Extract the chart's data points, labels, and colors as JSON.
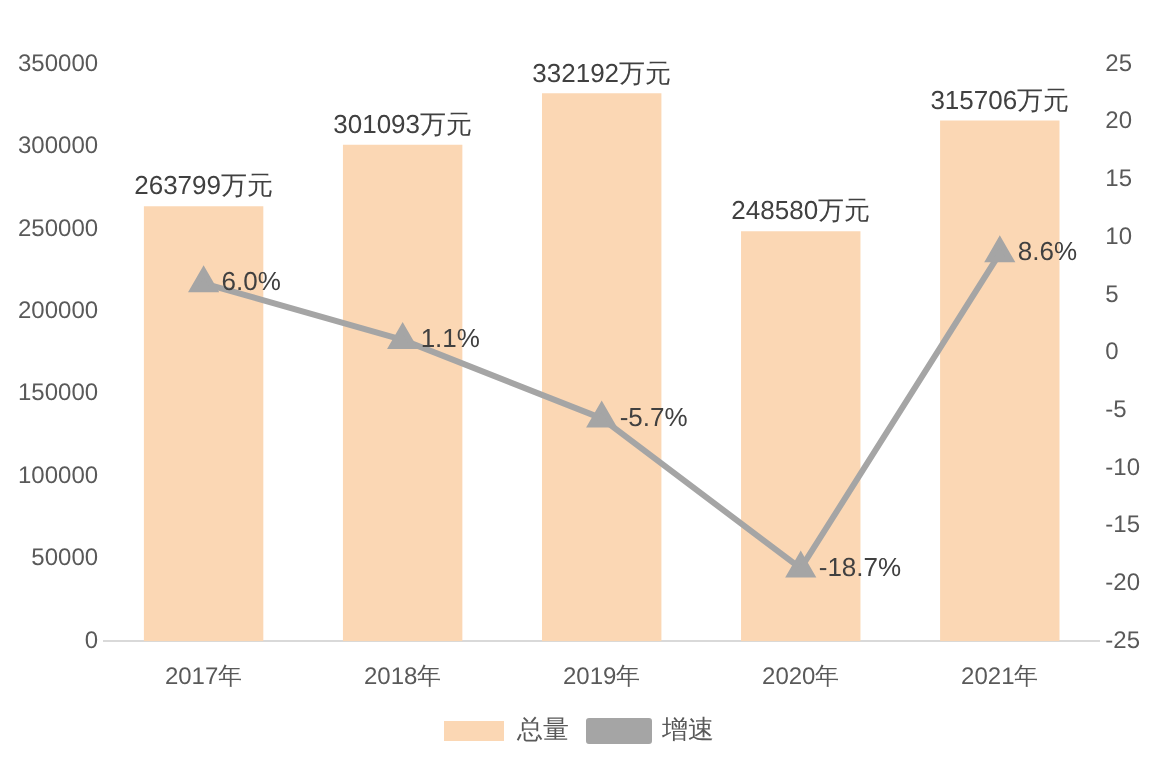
{
  "chart_data": {
    "type": "bar",
    "categories": [
      "2017年",
      "2018年",
      "2019年",
      "2020年",
      "2021年"
    ],
    "series": [
      {
        "name": "总量",
        "color": "#fbd7b4",
        "values": [
          263799,
          301093,
          332192,
          248580,
          315706
        ],
        "value_labels": [
          "263799万元",
          "301093万元",
          "332192万元",
          "248580万元",
          "315706万元"
        ]
      },
      {
        "name": "增速",
        "type": "line",
        "axis": "y2",
        "color": "#a5a5a5",
        "values": [
          6.0,
          1.1,
          -5.7,
          -18.7,
          8.6
        ],
        "value_labels": [
          "6.0%",
          "1.1%",
          "-5.7%",
          "-18.7%",
          "8.6%"
        ]
      }
    ],
    "ylim": [
      0,
      350000
    ],
    "yticks": [
      0,
      50000,
      100000,
      150000,
      200000,
      250000,
      300000,
      350000
    ],
    "y2lim": [
      -25,
      25
    ],
    "y2ticks": [
      -25,
      -20,
      -15,
      -10,
      -5,
      0,
      5,
      10,
      15,
      20,
      25
    ],
    "grid": false,
    "legend": "bottom",
    "marker": "triangle",
    "line_style": "solid"
  }
}
